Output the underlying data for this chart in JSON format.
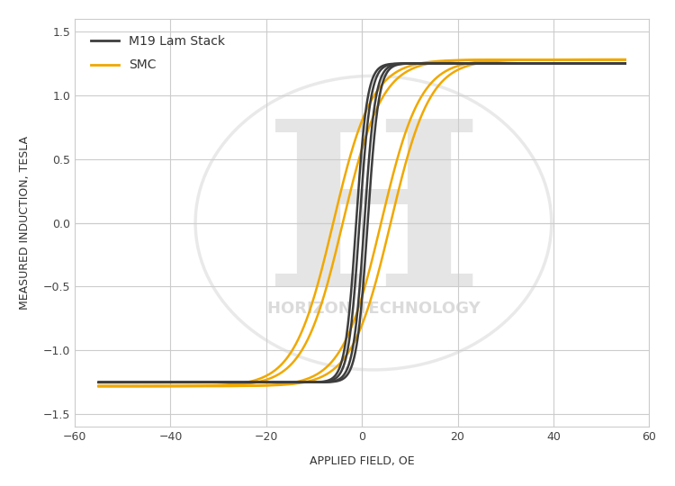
{
  "title": "",
  "xlabel": "APPLIED FIELD, OE",
  "ylabel": "MEASURED INDUCTION, TESLA",
  "xlim": [
    -60,
    60
  ],
  "ylim": [
    -1.6,
    1.6
  ],
  "xticks": [
    -60,
    -40,
    -20,
    0,
    20,
    40,
    60
  ],
  "yticks": [
    -1.5,
    -1,
    -0.5,
    0,
    0.5,
    1,
    1.5
  ],
  "m19_color": "#3d3d3d",
  "smc_color": "#f0a800",
  "watermark_text": "HORIZON TECHNOLOGY",
  "watermark_color": "#d0d0d0",
  "legend_labels": [
    "M19 Lam Stack",
    "SMC"
  ],
  "bg_color": "#ffffff",
  "grid_color": "#cccccc",
  "m19_Hsat": 8.0,
  "m19_Bsat": 1.25,
  "m19_Hc1": 1.2,
  "m19_Hc2": 0.5,
  "m19_slope": 3.5,
  "smc_Hsat": 18.0,
  "smc_Bsat": 1.28,
  "smc_Hc1": 6.0,
  "smc_Hc2": 4.0,
  "smc_slope": 2.2
}
